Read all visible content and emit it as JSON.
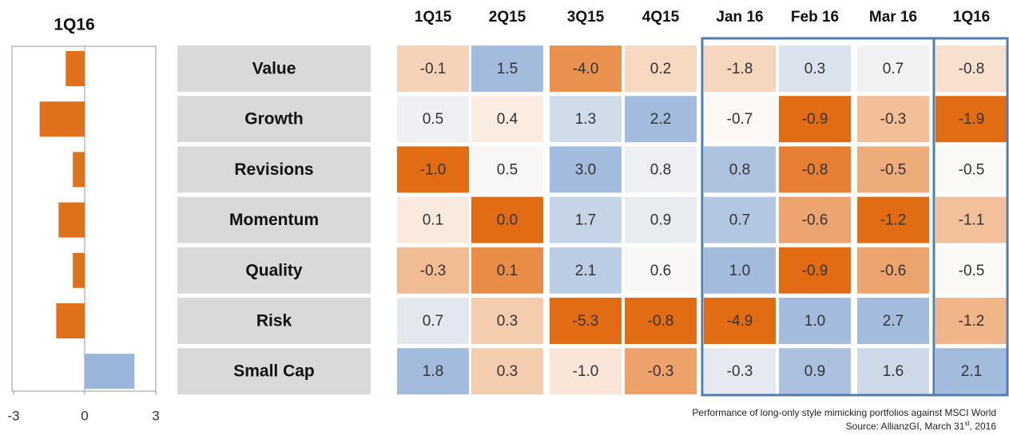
{
  "chart_data": {
    "type": "bar",
    "orientation": "horizontal",
    "title": "1Q16",
    "values": [
      -0.8,
      -1.9,
      -0.5,
      -1.1,
      -0.5,
      -1.2,
      2.1
    ],
    "colors": {
      "negative": "#e0711c",
      "positive": "#9ab5d9"
    },
    "xlim": [
      -3,
      3
    ],
    "xticks": [
      -3,
      0,
      3
    ]
  },
  "table": {
    "columns": [
      "1Q15",
      "2Q15",
      "3Q15",
      "4Q15",
      "Jan 16",
      "Feb 16",
      "Mar 16",
      "1Q16"
    ],
    "colors": {
      "low": "#e26c14",
      "mid": "#fdfaf7",
      "high": "#a3bcdd"
    },
    "rows": [
      {
        "label": "Value",
        "values": [
          -0.1,
          1.5,
          -4.0,
          0.2,
          -1.8,
          0.3,
          0.7,
          -0.8
        ],
        "value_labels": [
          "-0.1",
          "1.5",
          "-4.0",
          "0.2",
          "-1.8",
          "0.3",
          "0.7",
          "-0.8"
        ]
      },
      {
        "label": "Growth",
        "values": [
          0.5,
          0.4,
          1.3,
          2.2,
          -0.7,
          -0.9,
          -0.3,
          -1.9
        ],
        "value_labels": [
          "0.5",
          "0.4",
          "1.3",
          "2.2",
          "-0.7",
          "-0.9",
          "-0.3",
          "-1.9"
        ]
      },
      {
        "label": "Revisions",
        "values": [
          -1.0,
          0.5,
          3.0,
          0.8,
          0.8,
          -0.8,
          -0.5,
          -0.5
        ],
        "value_labels": [
          "-1.0",
          "0.5",
          "3.0",
          "0.8",
          "0.8",
          "-0.8",
          "-0.5",
          "-0.5"
        ]
      },
      {
        "label": "Momentum",
        "values": [
          0.1,
          0.0,
          1.7,
          0.9,
          0.7,
          -0.6,
          -1.2,
          -1.1
        ],
        "value_labels": [
          "0.1",
          "0.0",
          "1.7",
          "0.9",
          "0.7",
          "-0.6",
          "-1.2",
          "-1.1"
        ]
      },
      {
        "label": "Quality",
        "values": [
          -0.3,
          0.1,
          2.1,
          0.6,
          1.0,
          -0.9,
          -0.6,
          -0.5
        ],
        "value_labels": [
          "-0.3",
          "0.1",
          "2.1",
          "0.6",
          "1.0",
          "-0.9",
          "-0.6",
          "-0.5"
        ]
      },
      {
        "label": "Risk",
        "values": [
          0.7,
          0.3,
          -5.3,
          -0.8,
          -4.9,
          1.0,
          2.7,
          -1.2
        ],
        "value_labels": [
          "0.7",
          "0.3",
          "-5.3",
          "-0.8",
          "-4.9",
          "1.0",
          "2.7",
          "-1.2"
        ]
      },
      {
        "label": "Small Cap",
        "values": [
          1.8,
          0.3,
          -1.0,
          -0.3,
          -0.3,
          0.9,
          1.6,
          2.1
        ],
        "value_labels": [
          "1.8",
          "0.3",
          "-1.0",
          "-0.3",
          "-0.3",
          "0.9",
          "1.6",
          "2.1"
        ]
      }
    ]
  },
  "footnote": {
    "description": "Performance of long-only style mimicking portfolios against MSCI World",
    "source": {
      "prefix": "Source: AllianzGI, March 31",
      "sup": "st",
      "suffix": ", 2016"
    }
  }
}
